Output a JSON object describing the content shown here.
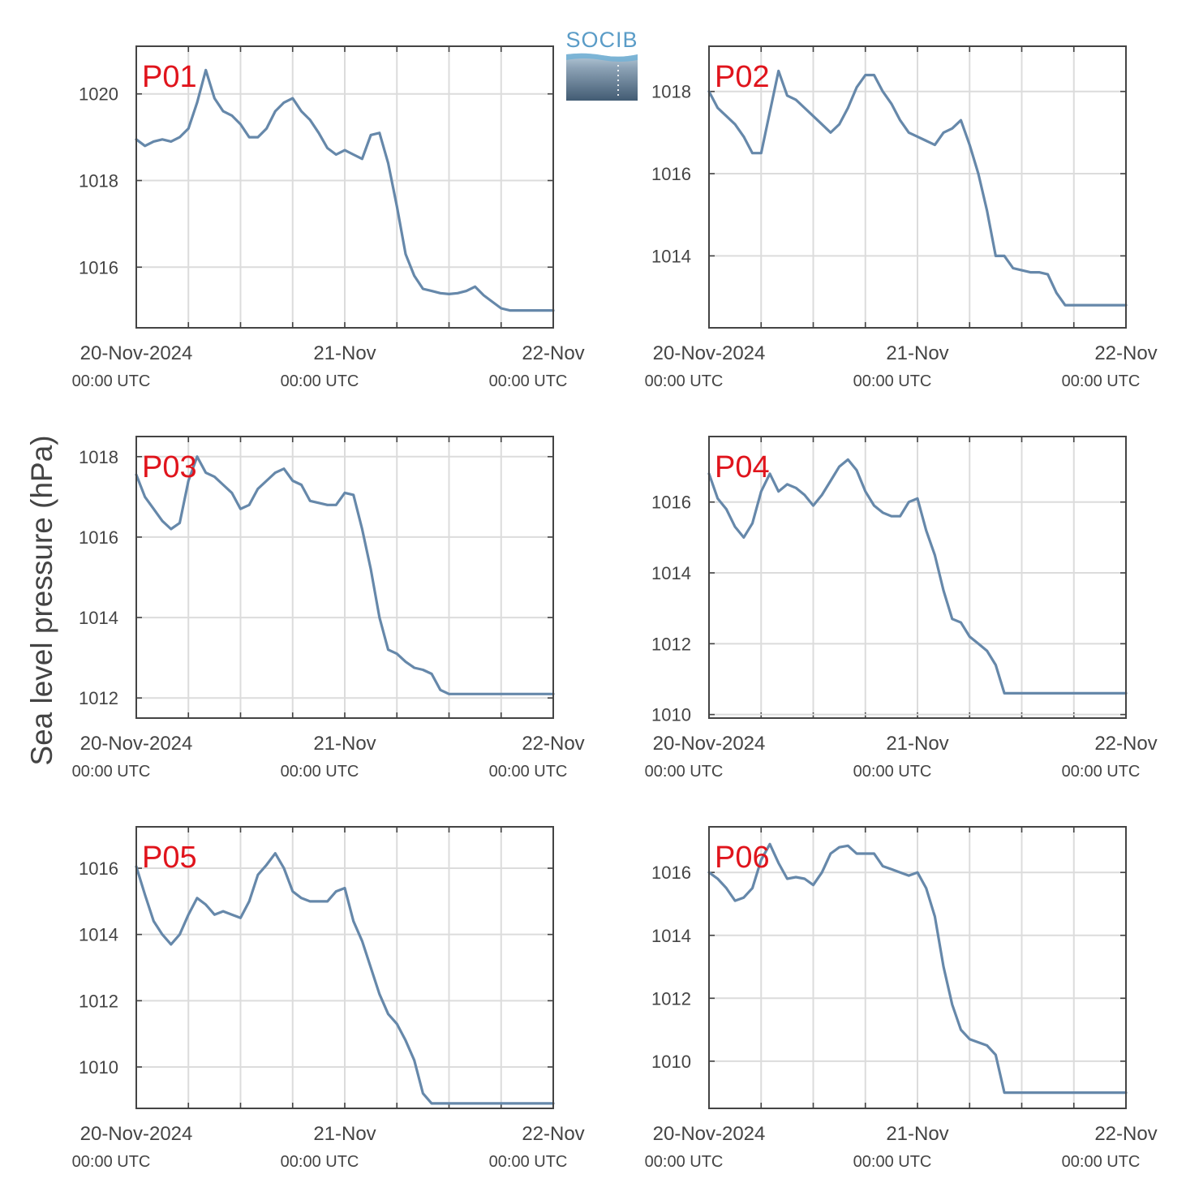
{
  "figure": {
    "ylabel": "Sea level pressure (hPa)",
    "logo_text": "SOCIB",
    "line_color": "#6688aa",
    "panel_label_color": "#e0141c",
    "x_tick_labels": [
      {
        "top": "20-Nov-2024",
        "bottom": "00:00 UTC"
      },
      {
        "top": "21-Nov",
        "bottom": "00:00 UTC"
      },
      {
        "top": "22-Nov",
        "bottom": "00:00 UTC"
      }
    ]
  },
  "chart_data": [
    {
      "type": "line",
      "title": "P01",
      "grid": true,
      "xlim": [
        0,
        48
      ],
      "ylim": [
        1014.6,
        1021.1
      ],
      "yticks": [
        1016,
        1018,
        1020
      ],
      "series": [
        {
          "x": [
            0,
            1,
            2,
            3,
            4,
            5,
            6,
            7,
            8,
            9,
            10,
            11,
            12,
            13,
            14,
            15,
            16,
            17,
            18,
            19,
            20,
            21,
            22,
            23,
            24,
            25,
            26,
            27,
            28,
            29,
            30,
            31,
            32,
            33,
            34,
            35,
            36,
            37,
            38,
            39,
            40,
            41,
            42,
            43,
            44,
            45,
            46,
            47,
            48
          ],
          "values": [
            1018.95,
            1018.8,
            1018.9,
            1018.95,
            1018.9,
            1019.0,
            1019.2,
            1019.8,
            1020.55,
            1019.9,
            1019.6,
            1019.5,
            1019.3,
            1019.0,
            1019.0,
            1019.2,
            1019.6,
            1019.8,
            1019.9,
            1019.6,
            1019.4,
            1019.1,
            1018.75,
            1018.6,
            1018.7,
            1018.6,
            1018.5,
            1019.05,
            1019.1,
            1018.4,
            1017.4,
            1016.3,
            1015.8,
            1015.5,
            1015.45,
            1015.4,
            1015.38,
            1015.4,
            1015.45,
            1015.55,
            1015.35,
            1015.2,
            1015.05,
            1015.0,
            1015.0,
            1015.0,
            1015.0,
            1015.0,
            1015.0
          ]
        }
      ]
    },
    {
      "type": "line",
      "title": "P02",
      "grid": true,
      "xlim": [
        0,
        48
      ],
      "ylim": [
        1012.25,
        1019.1
      ],
      "yticks": [
        1014,
        1016,
        1018
      ],
      "series": [
        {
          "x": [
            0,
            1,
            2,
            3,
            4,
            5,
            6,
            7,
            8,
            9,
            10,
            11,
            12,
            13,
            14,
            15,
            16,
            17,
            18,
            19,
            20,
            21,
            22,
            23,
            24,
            25,
            26,
            27,
            28,
            29,
            30,
            31,
            32,
            33,
            34,
            35,
            36,
            37,
            38,
            39,
            40,
            41,
            42,
            43,
            44,
            45,
            46,
            47,
            48
          ],
          "values": [
            1018.0,
            1017.6,
            1017.4,
            1017.2,
            1016.9,
            1016.5,
            1016.5,
            1017.5,
            1018.5,
            1017.9,
            1017.8,
            1017.6,
            1017.4,
            1017.2,
            1017.0,
            1017.2,
            1017.6,
            1018.1,
            1018.4,
            1018.4,
            1018.0,
            1017.7,
            1017.3,
            1017.0,
            1016.9,
            1016.8,
            1016.7,
            1017.0,
            1017.1,
            1017.3,
            1016.7,
            1016.0,
            1015.1,
            1014.0,
            1014.0,
            1013.7,
            1013.65,
            1013.6,
            1013.6,
            1013.55,
            1013.1,
            1012.8,
            1012.8,
            1012.8,
            1012.8,
            1012.8,
            1012.8,
            1012.8,
            1012.8
          ]
        }
      ]
    },
    {
      "type": "line",
      "title": "P03",
      "grid": true,
      "xlim": [
        0,
        48
      ],
      "ylim": [
        1011.5,
        1018.5
      ],
      "yticks": [
        1012,
        1014,
        1016,
        1018
      ],
      "series": [
        {
          "x": [
            0,
            1,
            2,
            3,
            4,
            5,
            6,
            7,
            8,
            9,
            10,
            11,
            12,
            13,
            14,
            15,
            16,
            17,
            18,
            19,
            20,
            21,
            22,
            23,
            24,
            25,
            26,
            27,
            28,
            29,
            30,
            31,
            32,
            33,
            34,
            35,
            36,
            37,
            38,
            39,
            40,
            41,
            42,
            43,
            44,
            45,
            46,
            47,
            48
          ],
          "values": [
            1017.55,
            1017.0,
            1016.7,
            1016.4,
            1016.2,
            1016.35,
            1017.4,
            1018.0,
            1017.6,
            1017.5,
            1017.3,
            1017.1,
            1016.7,
            1016.8,
            1017.2,
            1017.4,
            1017.6,
            1017.7,
            1017.4,
            1017.3,
            1016.9,
            1016.85,
            1016.8,
            1016.8,
            1017.1,
            1017.05,
            1016.2,
            1015.2,
            1014.0,
            1013.2,
            1013.1,
            1012.9,
            1012.75,
            1012.7,
            1012.6,
            1012.2,
            1012.1,
            1012.1,
            1012.1,
            1012.1,
            1012.1,
            1012.1,
            1012.1,
            1012.1,
            1012.1,
            1012.1,
            1012.1,
            1012.1,
            1012.1
          ]
        }
      ]
    },
    {
      "type": "line",
      "title": "P04",
      "grid": true,
      "xlim": [
        0,
        48
      ],
      "ylim": [
        1009.9,
        1017.85
      ],
      "yticks": [
        1010,
        1012,
        1014,
        1016
      ],
      "series": [
        {
          "x": [
            0,
            1,
            2,
            3,
            4,
            5,
            6,
            7,
            8,
            9,
            10,
            11,
            12,
            13,
            14,
            15,
            16,
            17,
            18,
            19,
            20,
            21,
            22,
            23,
            24,
            25,
            26,
            27,
            28,
            29,
            30,
            31,
            32,
            33,
            34,
            35,
            36,
            37,
            38,
            39,
            40,
            41,
            42,
            43,
            44,
            45,
            46,
            47,
            48
          ],
          "values": [
            1016.8,
            1016.1,
            1015.8,
            1015.3,
            1015.0,
            1015.4,
            1016.3,
            1016.8,
            1016.3,
            1016.5,
            1016.4,
            1016.2,
            1015.9,
            1016.2,
            1016.6,
            1017.0,
            1017.2,
            1016.9,
            1016.3,
            1015.9,
            1015.7,
            1015.6,
            1015.6,
            1016.0,
            1016.1,
            1015.2,
            1014.5,
            1013.5,
            1012.7,
            1012.6,
            1012.2,
            1012.0,
            1011.8,
            1011.4,
            1010.6,
            1010.6,
            1010.6,
            1010.6,
            1010.6,
            1010.6,
            1010.6,
            1010.6,
            1010.6,
            1010.6,
            1010.6,
            1010.6,
            1010.6,
            1010.6,
            1010.6
          ]
        }
      ]
    },
    {
      "type": "line",
      "title": "P05",
      "grid": true,
      "xlim": [
        0,
        48
      ],
      "ylim": [
        1008.75,
        1017.25
      ],
      "yticks": [
        1010,
        1012,
        1014,
        1016
      ],
      "series": [
        {
          "x": [
            0,
            1,
            2,
            3,
            4,
            5,
            6,
            7,
            8,
            9,
            10,
            11,
            12,
            13,
            14,
            15,
            16,
            17,
            18,
            19,
            20,
            21,
            22,
            23,
            24,
            25,
            26,
            27,
            28,
            29,
            30,
            31,
            32,
            33,
            34,
            35,
            36,
            37,
            38,
            39,
            40,
            41,
            42,
            43,
            44,
            45,
            46,
            47,
            48
          ],
          "values": [
            1016.05,
            1015.2,
            1014.4,
            1014.0,
            1013.7,
            1014.0,
            1014.6,
            1015.1,
            1014.9,
            1014.6,
            1014.7,
            1014.6,
            1014.5,
            1015.0,
            1015.8,
            1016.1,
            1016.45,
            1016.0,
            1015.3,
            1015.1,
            1015.0,
            1015.0,
            1015.0,
            1015.3,
            1015.4,
            1014.4,
            1013.8,
            1013.0,
            1012.2,
            1011.6,
            1011.3,
            1010.8,
            1010.2,
            1009.2,
            1008.9,
            1008.9,
            1008.9,
            1008.9,
            1008.9,
            1008.9,
            1008.9,
            1008.9,
            1008.9,
            1008.9,
            1008.9,
            1008.9,
            1008.9,
            1008.9,
            1008.9
          ]
        }
      ]
    },
    {
      "type": "line",
      "title": "P06",
      "grid": true,
      "xlim": [
        0,
        48
      ],
      "ylim": [
        1008.5,
        1017.45
      ],
      "yticks": [
        1010,
        1012,
        1014,
        1016
      ],
      "series": [
        {
          "x": [
            0,
            1,
            2,
            3,
            4,
            5,
            6,
            7,
            8,
            9,
            10,
            11,
            12,
            13,
            14,
            15,
            16,
            17,
            18,
            19,
            20,
            21,
            22,
            23,
            24,
            25,
            26,
            27,
            28,
            29,
            30,
            31,
            32,
            33,
            34,
            35,
            36,
            37,
            38,
            39,
            40,
            41,
            42,
            43,
            44,
            45,
            46,
            47,
            48
          ],
          "values": [
            1016.0,
            1015.8,
            1015.5,
            1015.1,
            1015.2,
            1015.5,
            1016.4,
            1016.9,
            1016.3,
            1015.8,
            1015.85,
            1015.8,
            1015.6,
            1016.0,
            1016.6,
            1016.8,
            1016.85,
            1016.6,
            1016.6,
            1016.6,
            1016.2,
            1016.1,
            1016.0,
            1015.9,
            1016.0,
            1015.5,
            1014.6,
            1013.0,
            1011.8,
            1011.0,
            1010.7,
            1010.6,
            1010.5,
            1010.2,
            1009.0,
            1009.0,
            1009.0,
            1009.0,
            1009.0,
            1009.0,
            1009.0,
            1009.0,
            1009.0,
            1009.0,
            1009.0,
            1009.0,
            1009.0,
            1009.0,
            1009.0
          ]
        }
      ]
    }
  ]
}
